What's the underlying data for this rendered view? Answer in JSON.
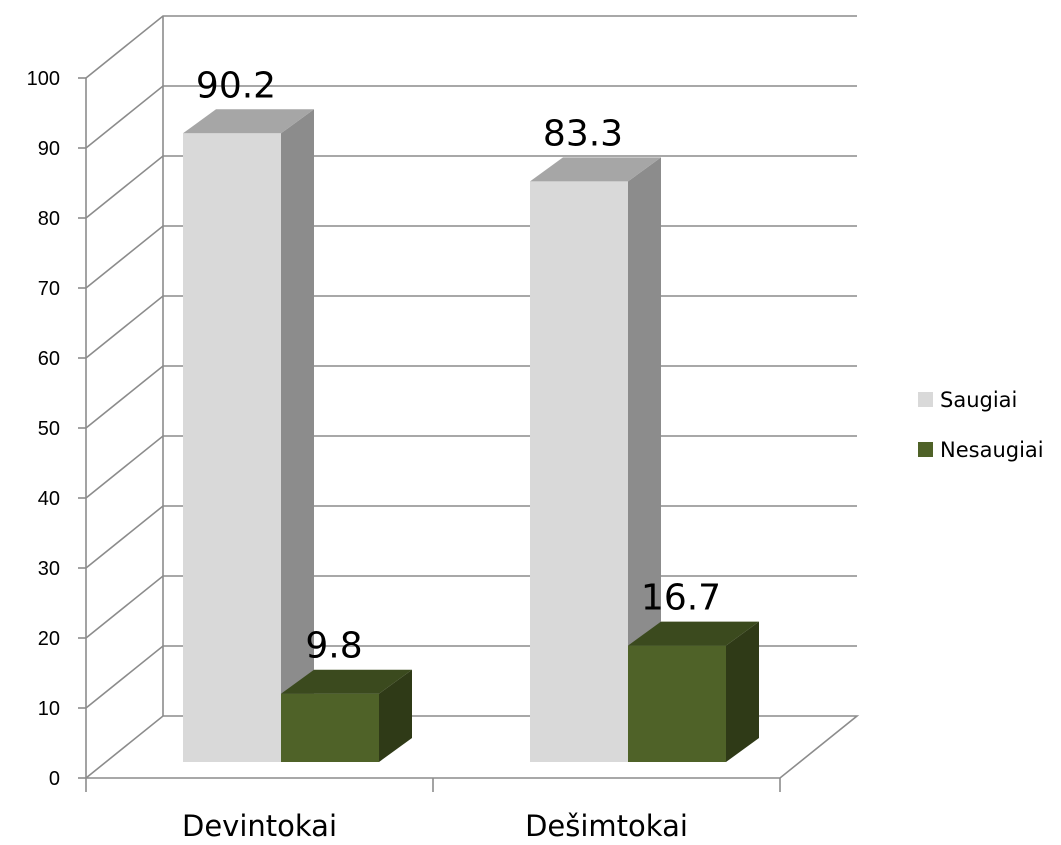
{
  "chart_data": {
    "type": "bar",
    "categories": [
      "Devintokai",
      "Dešimtokai"
    ],
    "series": [
      {
        "name": "Saugiai",
        "values": [
          90.2,
          83.3
        ],
        "color": "#d9d9d9"
      },
      {
        "name": "Nesaugiai",
        "values": [
          9.8,
          16.7
        ],
        "color": "#4f6228"
      }
    ],
    "ylim": [
      0,
      100
    ],
    "ytick_labels": [
      "0",
      "10",
      "20",
      "30",
      "40",
      "50",
      "60",
      "70",
      "80",
      "90",
      "100"
    ],
    "data_labels": [
      [
        "90.2",
        "83.3"
      ],
      [
        "9.8",
        "16.7"
      ]
    ],
    "grid": true,
    "legend_position": "right",
    "style": "3d-column"
  }
}
